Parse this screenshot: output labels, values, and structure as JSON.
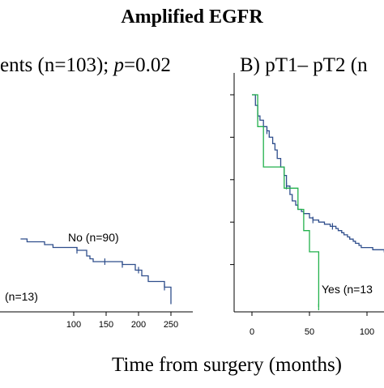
{
  "figure_title": "Amplified EGFR",
  "x_axis_title": "Time from surgery (months)",
  "colors": {
    "no_curve": "#2F4E8C",
    "yes_curve": "#22B14C",
    "axis": "#000000"
  },
  "chart_data": [
    {
      "panel_id": "A",
      "type": "line",
      "title_prefix": "ents (n=103); ",
      "title_p_label": "p",
      "title_p_value": "=0.02",
      "xticks": [
        "100",
        "150",
        "200",
        "250"
      ],
      "xlim": [
        0,
        250
      ],
      "series": [
        {
          "name": "No (n=90)",
          "color": "#2F4E8C",
          "x": [
            18,
            28,
            40,
            55,
            68,
            80,
            95,
            105,
            118,
            120,
            125,
            130,
            140,
            150,
            175,
            195,
            205,
            215,
            240,
            250
          ],
          "y": [
            0.5,
            0.49,
            0.49,
            0.48,
            0.47,
            0.47,
            0.47,
            0.46,
            0.46,
            0.44,
            0.43,
            0.42,
            0.42,
            0.42,
            0.41,
            0.39,
            0.37,
            0.35,
            0.33,
            0.27
          ],
          "censored_x": [
            105,
            148,
            175,
            200,
            240
          ]
        },
        {
          "name": "(n=13)",
          "color": "#22B14C",
          "x": [],
          "y": [],
          "censored_x": []
        }
      ]
    },
    {
      "panel_id": "B",
      "type": "line",
      "title": "B) pT1– pT2 (n",
      "xticks": [
        "0",
        "50",
        "100"
      ],
      "xlim": [
        0,
        130
      ],
      "ylim": [
        0,
        1
      ],
      "series": [
        {
          "name": "No",
          "color": "#2F4E8C",
          "x": [
            0,
            3,
            5,
            7,
            10,
            13,
            15,
            18,
            20,
            22,
            25,
            28,
            30,
            33,
            35,
            38,
            40,
            43,
            45,
            48,
            50,
            53,
            55,
            58,
            60,
            63,
            65,
            68,
            70,
            73,
            75,
            78,
            80,
            83,
            85,
            88,
            90,
            93,
            95,
            100,
            105,
            110,
            115,
            120,
            125,
            130
          ],
          "y": [
            1.0,
            0.95,
            0.9,
            0.88,
            0.85,
            0.83,
            0.8,
            0.77,
            0.74,
            0.7,
            0.66,
            0.62,
            0.57,
            0.53,
            0.5,
            0.48,
            0.46,
            0.45,
            0.44,
            0.44,
            0.42,
            0.41,
            0.41,
            0.4,
            0.4,
            0.39,
            0.39,
            0.38,
            0.38,
            0.37,
            0.36,
            0.35,
            0.34,
            0.33,
            0.32,
            0.31,
            0.3,
            0.29,
            0.28,
            0.28,
            0.27,
            0.27,
            0.26,
            0.26,
            0.26,
            0.26
          ],
          "censored_x": [
            5,
            13,
            30,
            53,
            70
          ]
        },
        {
          "name": "Yes (n=13",
          "color": "#22B14C",
          "x": [
            0,
            5,
            10,
            20,
            28,
            35,
            40,
            45,
            50,
            55,
            58
          ],
          "y": [
            1.0,
            0.85,
            0.66,
            0.66,
            0.56,
            0.56,
            0.46,
            0.36,
            0.26,
            0.26,
            0.0
          ],
          "censored_x": [
            58
          ]
        }
      ]
    }
  ]
}
